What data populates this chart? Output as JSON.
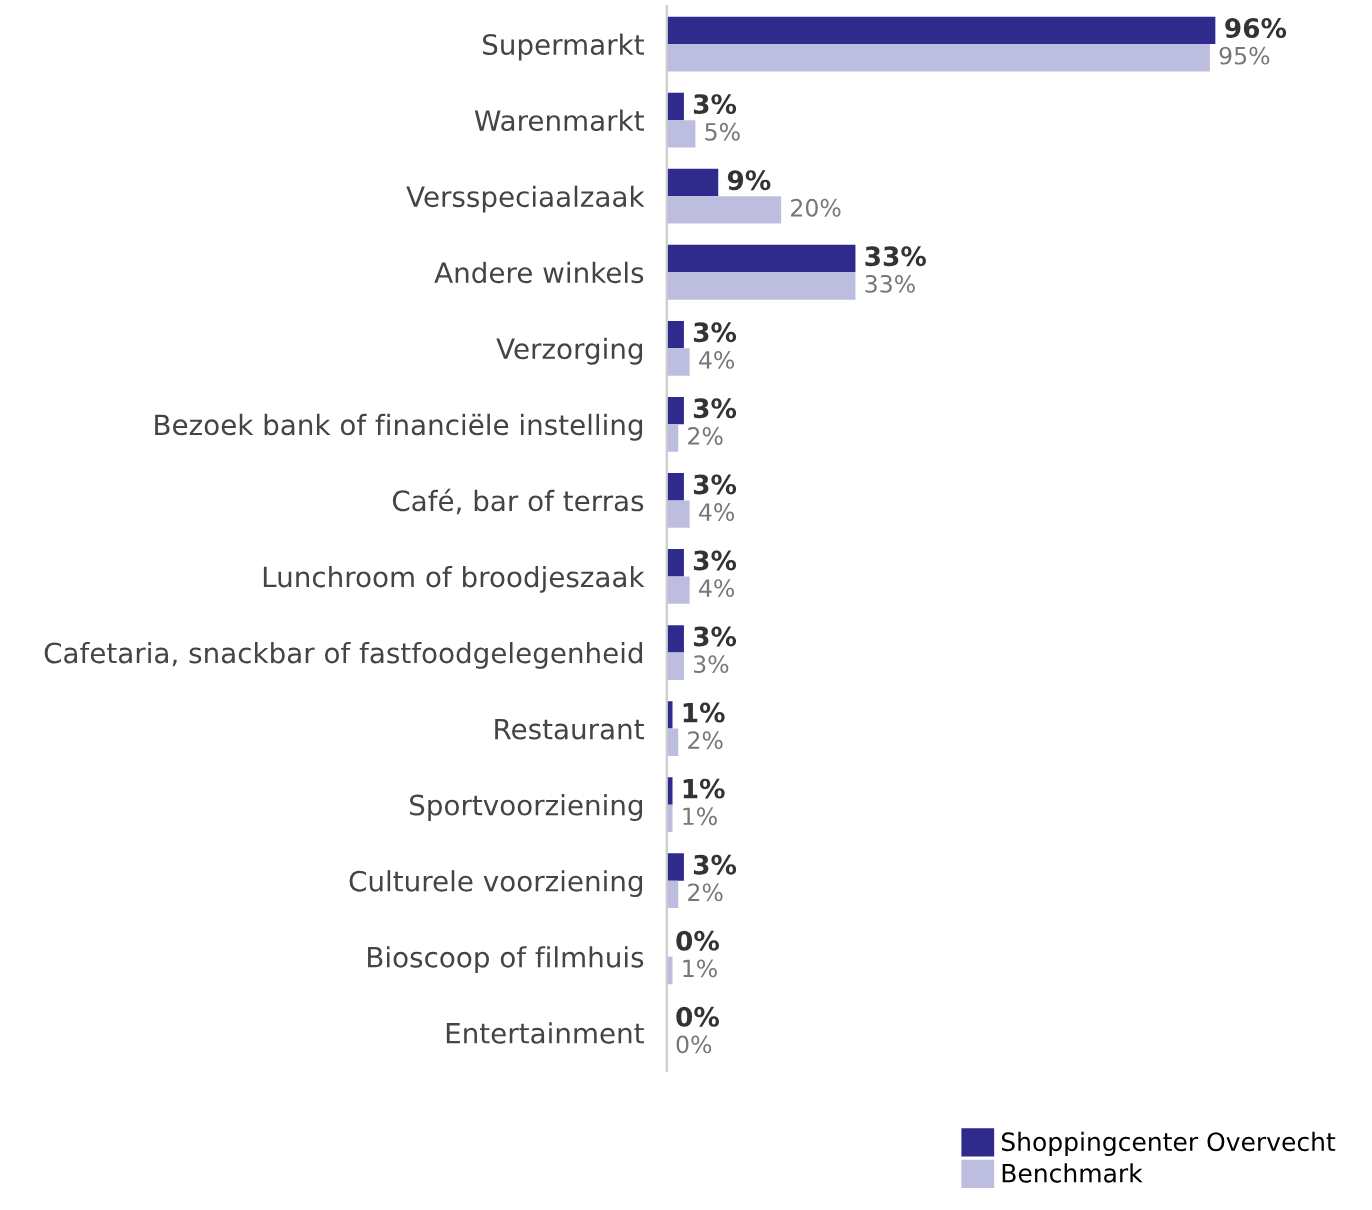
{
  "chart_data": {
    "type": "bar",
    "orientation": "horizontal",
    "categories": [
      "Supermarkt",
      "Warenmarkt",
      "Versspeciaalzaak",
      "Andere winkels",
      "Verzorging",
      "Bezoek bank of financiële instelling",
      "Café, bar of terras",
      "Lunchroom of broodjeszaak",
      "Cafetaria, snackbar of fastfoodgelegenheid",
      "Restaurant",
      "Sportvoorziening",
      "Culturele voorziening",
      "Bioscoop of filmhuis",
      "Entertainment"
    ],
    "series": [
      {
        "name": "Shoppingcenter Overvecht",
        "color": "#2f2b8c",
        "values": [
          96,
          3,
          9,
          33,
          3,
          3,
          3,
          3,
          3,
          1,
          1,
          3,
          0,
          0
        ],
        "value_labels": [
          "96%",
          "3%",
          "9%",
          "33%",
          "3%",
          "3%",
          "3%",
          "3%",
          "3%",
          "1%",
          "1%",
          "3%",
          "0%",
          "0%"
        ]
      },
      {
        "name": "Benchmark",
        "color": "#bdbde0",
        "values": [
          95,
          5,
          20,
          33,
          4,
          2,
          4,
          4,
          3,
          2,
          1,
          2,
          1,
          0
        ],
        "value_labels": [
          "95%",
          "5%",
          "20%",
          "33%",
          "4%",
          "2%",
          "4%",
          "4%",
          "3%",
          "2%",
          "1%",
          "2%",
          "1%",
          "0%"
        ]
      }
    ],
    "legend": "bottom right",
    "grid": false
  }
}
